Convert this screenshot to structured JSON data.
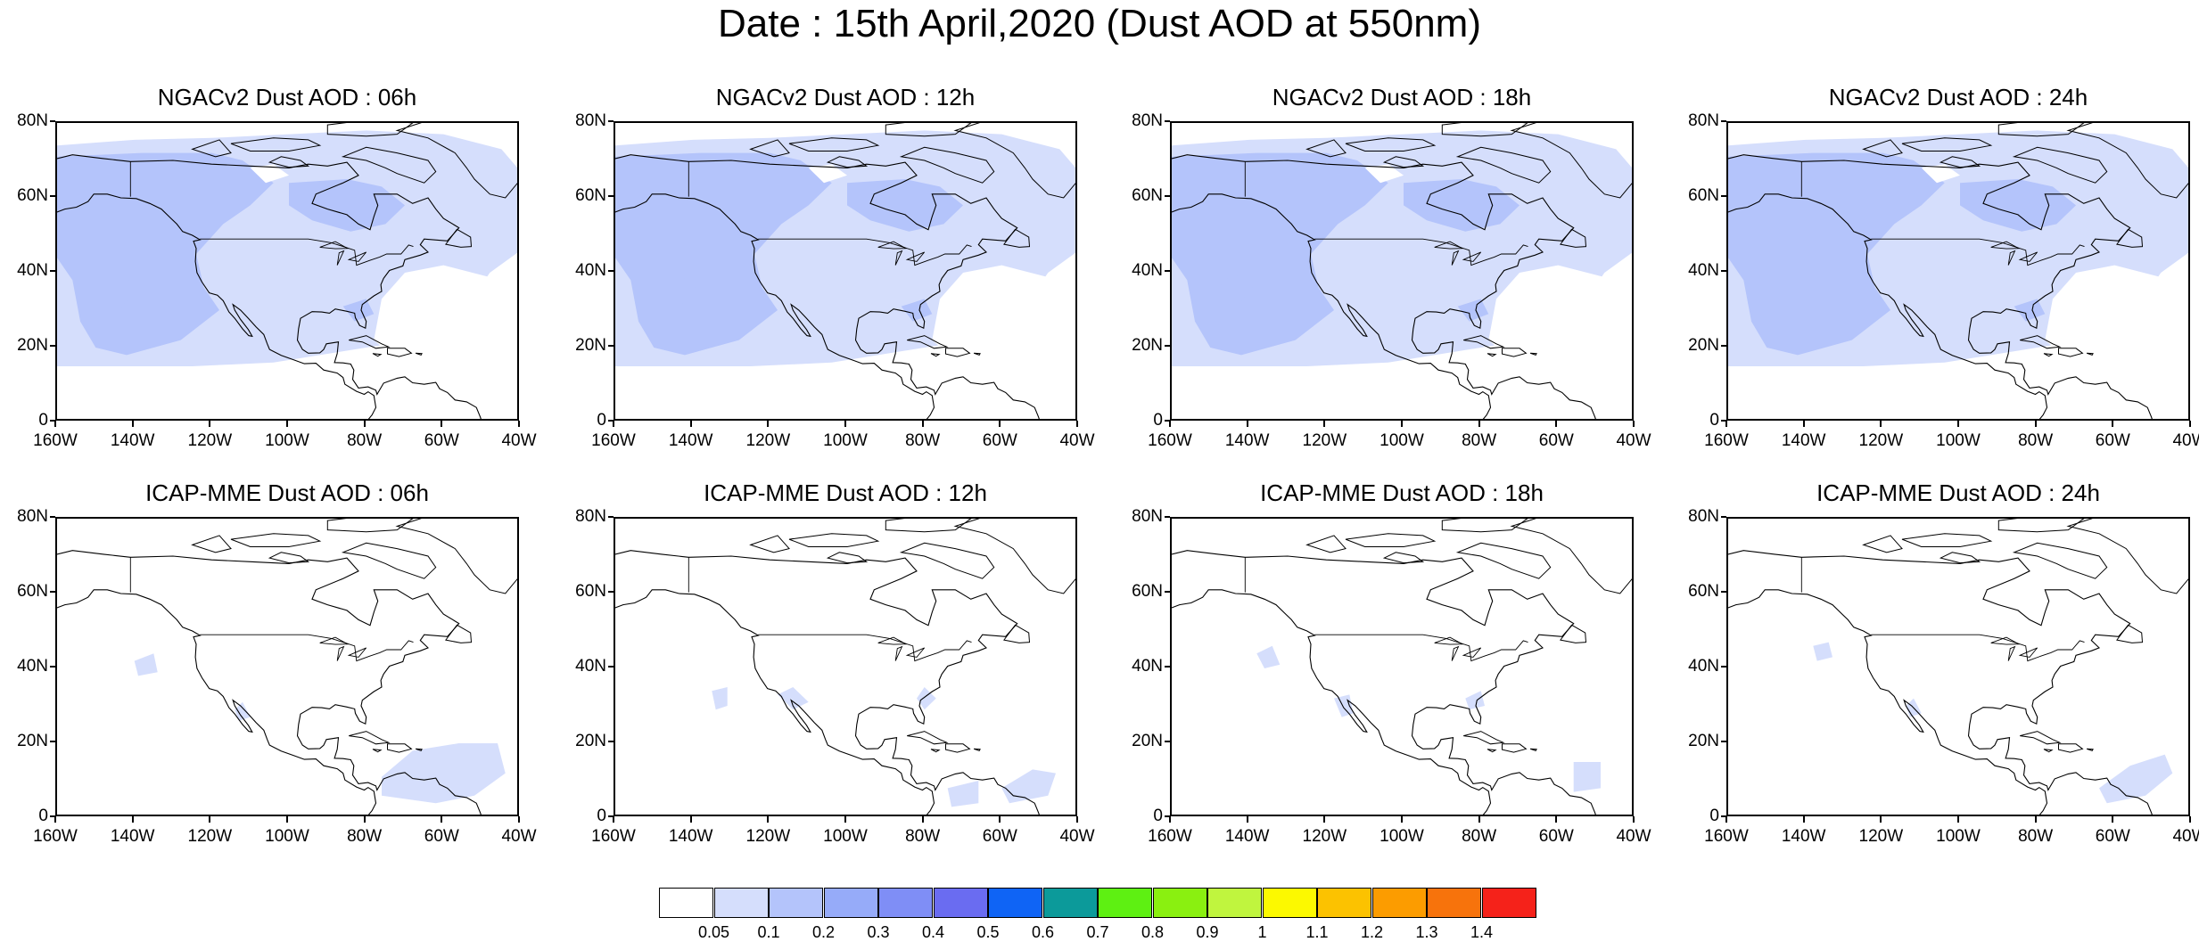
{
  "title": "Date : 15th April,2020 (Dust AOD at 550nm)",
  "axes": {
    "y_ticks": [
      "80N",
      "60N",
      "40N",
      "20N",
      "0"
    ],
    "x_ticks": [
      "160W",
      "140W",
      "120W",
      "100W",
      "80W",
      "60W",
      "40W"
    ],
    "lon_range": [
      -160,
      -40
    ],
    "lat_range": [
      0,
      80
    ]
  },
  "panels": [
    {
      "title": "NGACv2 Dust AOD : 06h",
      "model": "NGACv2",
      "hour": "06h"
    },
    {
      "title": "NGACv2 Dust AOD : 12h",
      "model": "NGACv2",
      "hour": "12h"
    },
    {
      "title": "NGACv2 Dust AOD : 18h",
      "model": "NGACv2",
      "hour": "18h"
    },
    {
      "title": "NGACv2 Dust AOD : 24h",
      "model": "NGACv2",
      "hour": "24h"
    },
    {
      "title": "ICAP-MME Dust AOD : 06h",
      "model": "ICAP-MME",
      "hour": "06h"
    },
    {
      "title": "ICAP-MME Dust AOD : 12h",
      "model": "ICAP-MME",
      "hour": "12h"
    },
    {
      "title": "ICAP-MME Dust AOD : 18h",
      "model": "ICAP-MME",
      "hour": "18h"
    },
    {
      "title": "ICAP-MME Dust AOD : 24h",
      "model": "ICAP-MME",
      "hour": "24h"
    }
  ],
  "colorbar": {
    "labels": [
      "0.05",
      "0.1",
      "0.2",
      "0.3",
      "0.4",
      "0.5",
      "0.6",
      "0.7",
      "0.8",
      "0.9",
      "1",
      "1.1",
      "1.2",
      "1.3",
      "1.4"
    ],
    "colors": [
      "#ffffff",
      "#d5defc",
      "#b4c4fb",
      "#96abf9",
      "#7f8ef6",
      "#6a6cf1",
      "#0f64f5",
      "#0c9a9a",
      "#5ef012",
      "#8af010",
      "#c0f53e",
      "#fcf900",
      "#fcc200",
      "#fc9c00",
      "#f7730c",
      "#f5221a"
    ]
  },
  "colors": {
    "aod_light": "#d5defc",
    "aod_mid": "#b4c4fb",
    "coastline": "#000000"
  }
}
